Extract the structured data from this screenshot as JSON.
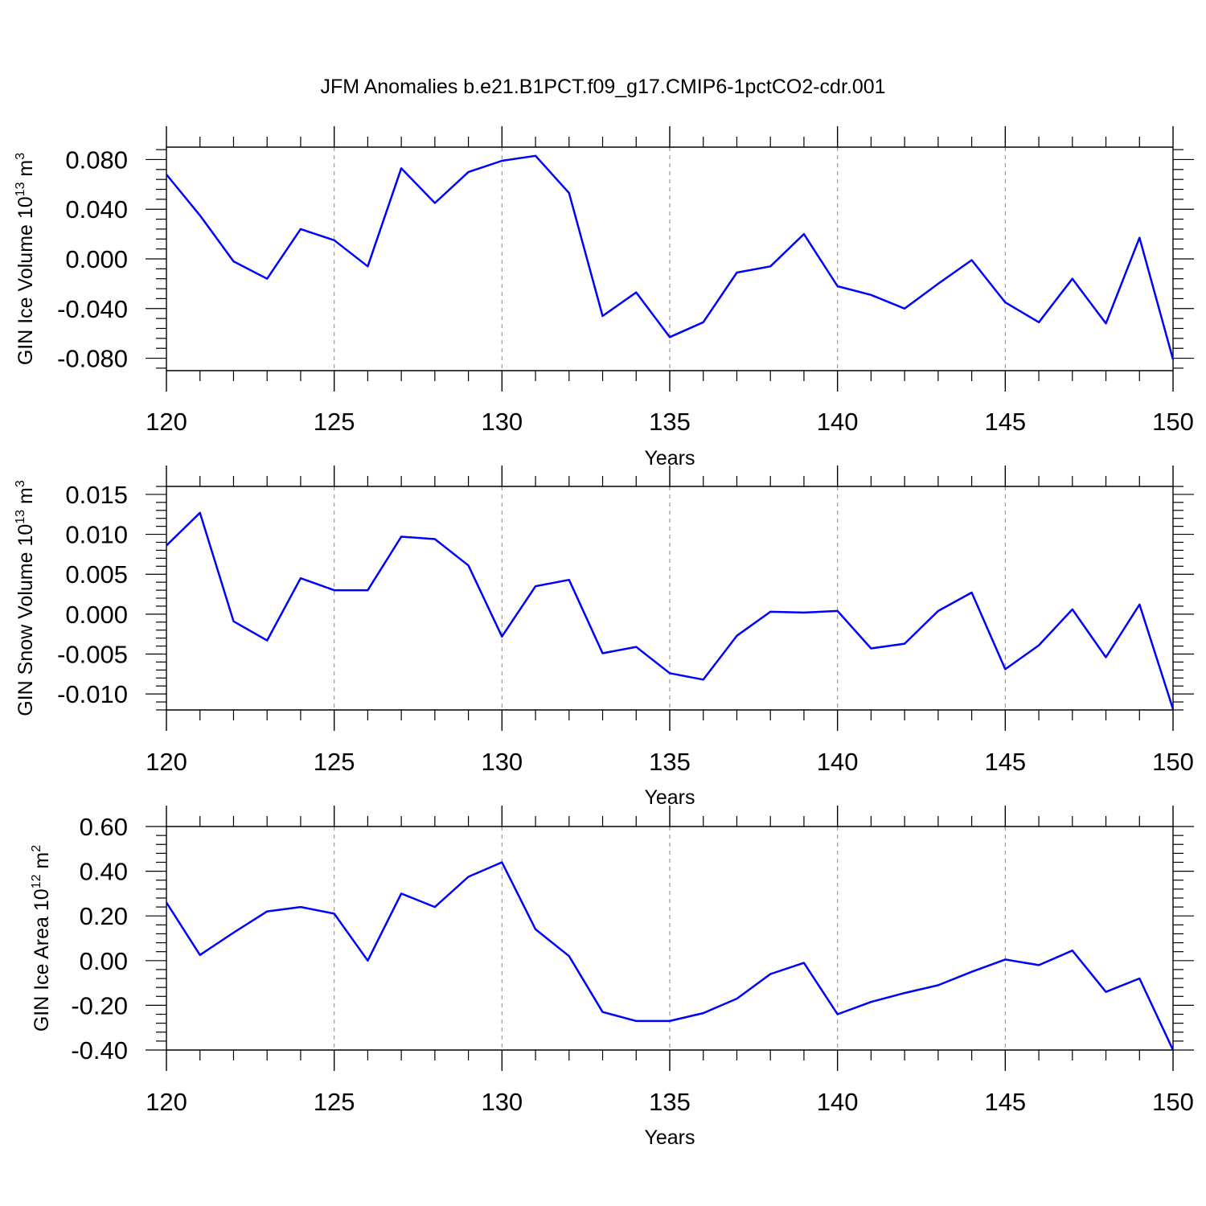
{
  "title": "JFM Anomalies b.e21.B1PCT.f09_g17.CMIP6-1pctCO2-cdr.001",
  "colors": {
    "line": "#0000ff",
    "axis": "#000000",
    "grid": "#999999"
  },
  "chart_data": [
    {
      "type": "line",
      "title": "JFM Anomalies b.e21.B1PCT.f09_g17.CMIP6-1pctCO2-cdr.001",
      "xlabel": "Years",
      "ylabel": {
        "text": "GIN Ice Volume 10",
        "sup": "13",
        "unit": " m",
        "unit_sup": "3"
      },
      "xlim": [
        120,
        150
      ],
      "ylim": [
        -0.09,
        0.09
      ],
      "xticks": [
        "120",
        "125",
        "130",
        "135",
        "140",
        "145",
        "150"
      ],
      "yticks": [
        {
          "value": 0.08,
          "label": "0.080"
        },
        {
          "value": 0.04,
          "label": "0.040"
        },
        {
          "value": 0.0,
          "label": "0.000"
        },
        {
          "value": -0.04,
          "label": "-0.040"
        },
        {
          "value": -0.08,
          "label": "-0.080"
        }
      ],
      "grid": "vertical dashed at major x ticks",
      "x": [
        120,
        121,
        122,
        123,
        124,
        125,
        126,
        127,
        128,
        129,
        130,
        131,
        132,
        133,
        134,
        135,
        136,
        137,
        138,
        139,
        140,
        141,
        142,
        143,
        144,
        145,
        146,
        147,
        148,
        149,
        150
      ],
      "values": [
        0.068,
        0.035,
        -0.002,
        -0.016,
        0.024,
        0.015,
        -0.006,
        0.073,
        0.045,
        0.07,
        0.079,
        0.083,
        0.053,
        -0.046,
        -0.027,
        -0.063,
        -0.051,
        -0.011,
        -0.006,
        0.02,
        -0.022,
        -0.029,
        -0.04,
        -0.02,
        -0.001,
        -0.035,
        -0.051,
        -0.016,
        -0.052,
        0.017,
        -0.081
      ]
    },
    {
      "type": "line",
      "xlabel": "Years",
      "ylabel": {
        "text": "GIN Snow Volume 10",
        "sup": "13",
        "unit": " m",
        "unit_sup": "3"
      },
      "xlim": [
        120,
        150
      ],
      "ylim": [
        -0.012,
        0.016
      ],
      "xticks": [
        "120",
        "125",
        "130",
        "135",
        "140",
        "145",
        "150"
      ],
      "yticks": [
        {
          "value": 0.015,
          "label": "0.015"
        },
        {
          "value": 0.01,
          "label": "0.010"
        },
        {
          "value": 0.005,
          "label": "0.005"
        },
        {
          "value": 0.0,
          "label": "0.000"
        },
        {
          "value": -0.005,
          "label": "-0.005"
        },
        {
          "value": -0.01,
          "label": "-0.010"
        }
      ],
      "grid": "vertical dashed at major x ticks",
      "x": [
        120,
        121,
        122,
        123,
        124,
        125,
        126,
        127,
        128,
        129,
        130,
        131,
        132,
        133,
        134,
        135,
        136,
        137,
        138,
        139,
        140,
        141,
        142,
        143,
        144,
        145,
        146,
        147,
        148,
        149,
        150
      ],
      "values": [
        0.0086,
        0.0127,
        -0.0009,
        -0.0033,
        0.0045,
        0.003,
        0.003,
        0.0097,
        0.0094,
        0.0061,
        -0.0028,
        0.0035,
        0.0043,
        -0.0049,
        -0.0041,
        -0.0074,
        -0.0082,
        -0.0027,
        0.0003,
        0.0002,
        0.0004,
        -0.0043,
        -0.0037,
        0.0004,
        0.0027,
        -0.0069,
        -0.0039,
        0.0006,
        -0.0054,
        0.0012,
        -0.0119
      ]
    },
    {
      "type": "line",
      "xlabel": "Years",
      "ylabel": {
        "text": "GIN Ice Area 10",
        "sup": "12",
        "unit": " m",
        "unit_sup": "2"
      },
      "xlim": [
        120,
        150
      ],
      "ylim": [
        -0.4,
        0.6
      ],
      "xticks": [
        "120",
        "125",
        "130",
        "135",
        "140",
        "145",
        "150"
      ],
      "yticks": [
        {
          "value": 0.6,
          "label": "0.60"
        },
        {
          "value": 0.4,
          "label": "0.40"
        },
        {
          "value": 0.2,
          "label": "0.20"
        },
        {
          "value": 0.0,
          "label": "0.00"
        },
        {
          "value": -0.2,
          "label": "-0.20"
        },
        {
          "value": -0.4,
          "label": "-0.40"
        }
      ],
      "grid": "vertical dashed at major x ticks",
      "x": [
        120,
        121,
        122,
        123,
        124,
        125,
        126,
        127,
        128,
        129,
        130,
        131,
        132,
        133,
        134,
        135,
        136,
        137,
        138,
        139,
        140,
        141,
        142,
        143,
        144,
        145,
        146,
        147,
        148,
        149,
        150
      ],
      "values": [
        0.26,
        0.025,
        0.125,
        0.22,
        0.24,
        0.21,
        0.0,
        0.3,
        0.24,
        0.375,
        0.44,
        0.14,
        0.02,
        -0.23,
        -0.27,
        -0.27,
        -0.235,
        -0.17,
        -0.06,
        -0.01,
        -0.24,
        -0.185,
        -0.145,
        -0.11,
        -0.05,
        0.005,
        -0.02,
        0.045,
        -0.14,
        -0.08,
        -0.4
      ]
    }
  ]
}
